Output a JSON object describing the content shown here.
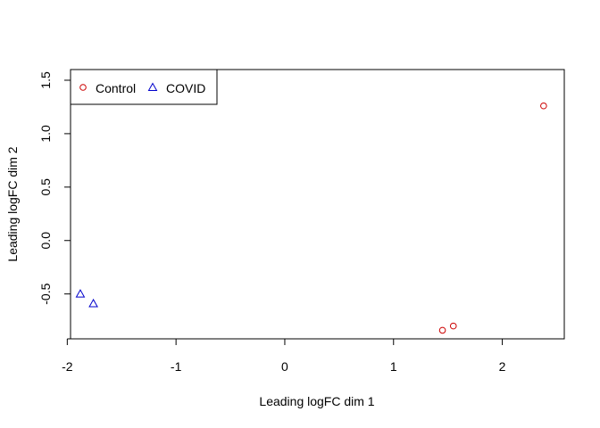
{
  "chart_data": {
    "type": "scatter",
    "title": "",
    "xlabel": "Leading logFC dim 1",
    "ylabel": "Leading logFC dim 2",
    "xlim": [
      -1.97,
      2.57
    ],
    "ylim": [
      -0.92,
      1.6
    ],
    "x_ticks": [
      "-2",
      "-1",
      "0",
      "1",
      "2"
    ],
    "y_ticks": [
      "-0.5",
      "0.0",
      "0.5",
      "1.0",
      "1.5"
    ],
    "grid": false,
    "legend_position": "top-left",
    "series": [
      {
        "name": "Control",
        "marker": "circle",
        "color": "#cc0000",
        "points": [
          {
            "x": 2.38,
            "y": 1.26
          },
          {
            "x": 1.55,
            "y": -0.8
          },
          {
            "x": 1.45,
            "y": -0.84
          }
        ]
      },
      {
        "name": "COVID",
        "marker": "triangle",
        "color": "#0000cc",
        "points": [
          {
            "x": -1.88,
            "y": -0.5
          },
          {
            "x": -1.76,
            "y": -0.59
          }
        ]
      }
    ]
  }
}
